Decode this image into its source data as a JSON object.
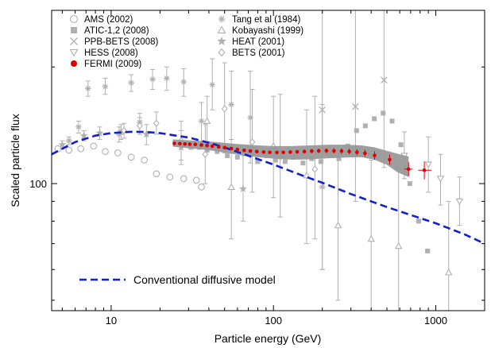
{
  "chart_data": {
    "type": "scatter",
    "title": "",
    "xlabel": "Particle energy (GeV)",
    "ylabel": "Scaled particle flux",
    "x_scale": "log",
    "y_scale": "log",
    "xlim": [
      4.3,
      2000
    ],
    "ylim": [
      47,
      280
    ],
    "x_ticks": [
      10,
      100,
      1000
    ],
    "x_tick_labels": [
      "10",
      "100",
      "1000"
    ],
    "y_ticks": [
      100
    ],
    "y_tick_labels": [
      "100"
    ],
    "grid": false,
    "legend_position": "top-left",
    "colors": {
      "data_gray": "#b0b0b0",
      "fermi": "#e00000",
      "model": "#1020d0",
      "band": "#999999"
    },
    "legend": {
      "col1": [
        {
          "label": "AMS (2002)",
          "marker": "circle"
        },
        {
          "label": "ATIC-1,2 (2008)",
          "marker": "square"
        },
        {
          "label": "PPB-BETS (2008)",
          "marker": "cross"
        },
        {
          "label": "HESS (2008)",
          "marker": "triangle-down"
        },
        {
          "label": "FERMI (2009)",
          "marker": "filled-circle"
        }
      ],
      "col2": [
        {
          "label": "Tang et al (1984)",
          "marker": "asterisk"
        },
        {
          "label": "Kobayashi (1999)",
          "marker": "triangle-up"
        },
        {
          "label": "HEAT (2001)",
          "marker": "star"
        },
        {
          "label": "BETS (2001)",
          "marker": "diamond"
        }
      ]
    },
    "model_label": "Conventional diffusive model",
    "series": [
      {
        "name": "AMS (2002)",
        "marker": "circle",
        "points": [
          [
            4.7,
            123,
            127
          ],
          [
            5.5,
            122,
            126
          ],
          [
            6.5,
            123,
            128
          ],
          [
            7.8,
            125,
            131
          ],
          [
            9.2,
            121,
            128
          ],
          [
            11,
            120,
            128
          ],
          [
            13.3,
            117,
            126
          ],
          [
            16,
            115,
            126
          ],
          [
            19,
            106,
            118
          ],
          [
            23,
            104,
            118
          ],
          [
            28,
            103,
            121
          ],
          [
            33.5,
            102,
            125
          ],
          [
            36,
            98,
            125
          ]
        ]
      },
      {
        "name": "ATIC-1,2 (2008)",
        "marker": "square",
        "points": [
          [
            27,
            127,
            132
          ],
          [
            31,
            124,
            130
          ],
          [
            35,
            124,
            131
          ],
          [
            39,
            122,
            130
          ],
          [
            45,
            121,
            131
          ],
          [
            52,
            118,
            129
          ],
          [
            60,
            117,
            129
          ],
          [
            70,
            120,
            132
          ],
          [
            80,
            114,
            128
          ],
          [
            91,
            118,
            133
          ],
          [
            103,
            115,
            131
          ],
          [
            118,
            114,
            132
          ],
          [
            133,
            117,
            137
          ],
          [
            152,
            113,
            135
          ],
          [
            172,
            116,
            141
          ],
          [
            196,
            114,
            143
          ],
          [
            222,
            120,
            153
          ],
          [
            253,
            116,
            152
          ],
          [
            287,
            125,
            170
          ],
          [
            325,
            137,
            194
          ],
          [
            368,
            141,
            206
          ],
          [
            418,
            147,
            225
          ],
          [
            474,
            152,
            245
          ],
          [
            538,
            145,
            250
          ],
          [
            610,
            126,
            230
          ],
          [
            692,
            100,
            195
          ],
          [
            785,
            80,
            170
          ],
          [
            890,
            67,
            155
          ]
        ]
      },
      {
        "name": "PPB-BETS (2008)",
        "marker": "cross",
        "points": [
          [
            200,
            155,
            60,
            450
          ],
          [
            320,
            158,
            90,
            320
          ],
          [
            480,
            185,
            110,
            320
          ]
        ]
      },
      {
        "name": "HESS (2008)",
        "marker": "triangle-down",
        "points": [
          [
            640,
            118,
            103,
            136
          ],
          [
            900,
            112,
            95,
            132
          ],
          [
            1070,
            103,
            88,
            119
          ],
          [
            1400,
            90,
            78,
            104
          ]
        ]
      },
      {
        "name": "Tang et al (1984)",
        "marker": "asterisk",
        "points": [
          [
            5.5,
            129,
            126,
            132
          ],
          [
            6.3,
            140,
            135,
            145
          ],
          [
            7.2,
            176,
            168,
            184
          ],
          [
            9.2,
            178,
            170,
            187
          ],
          [
            11.2,
            134,
            128,
            140
          ],
          [
            13.3,
            182,
            173,
            191
          ],
          [
            15,
            144,
            136,
            152
          ],
          [
            18,
            186,
            175,
            197
          ],
          [
            22,
            187,
            174,
            200
          ],
          [
            28,
            183,
            168,
            198
          ],
          [
            36,
            145,
            128,
            162
          ],
          [
            42,
            180,
            155,
            210
          ],
          [
            55,
            160,
            130,
            195
          ],
          [
            72,
            148,
            113,
            195
          ],
          [
            200,
            98,
            60,
            160
          ]
        ]
      },
      {
        "name": "Kobayashi (1999)",
        "marker": "triangle-up",
        "points": [
          [
            39,
            145,
            125,
            168
          ],
          [
            55,
            98,
            72,
            130
          ],
          [
            100,
            125,
            92,
            168
          ],
          [
            160,
            105,
            70,
            155
          ],
          [
            250,
            78,
            50,
            120
          ],
          [
            400,
            72,
            45,
            115
          ],
          [
            590,
            69,
            42,
            110
          ],
          [
            1200,
            59,
            38,
            90
          ]
        ]
      },
      {
        "name": "HEAT (2001)",
        "marker": "star",
        "points": [
          [
            5,
            126,
            123,
            129
          ],
          [
            6.8,
            133,
            129,
            137
          ],
          [
            8.5,
            135,
            130,
            140
          ],
          [
            11.5,
            136,
            130,
            142
          ],
          [
            16.5,
            134,
            126,
            142
          ],
          [
            27,
            124,
            112,
            137
          ],
          [
            65,
            97,
            80,
            118
          ]
        ]
      },
      {
        "name": "BETS (2001)",
        "marker": "diamond",
        "points": [
          [
            12,
            137,
            131,
            143
          ],
          [
            15,
            141,
            134,
            148
          ],
          [
            19,
            143,
            134,
            153
          ],
          [
            27,
            129,
            115,
            145
          ],
          [
            38,
            119,
            100,
            142
          ],
          [
            50,
            156,
            120,
            205
          ],
          [
            74,
            128,
            95,
            175
          ],
          [
            110,
            117,
            82,
            170
          ],
          [
            180,
            109,
            72,
            168
          ]
        ]
      },
      {
        "name": "FERMI (2009)",
        "marker": "filled-circle",
        "points": [
          [
            24.5,
            127.0,
            126.0,
            128.0
          ],
          [
            26.5,
            126.8,
            125.8,
            127.8
          ],
          [
            28.5,
            126.6,
            125.6,
            127.6
          ],
          [
            30.5,
            126.4,
            125.4,
            127.4
          ],
          [
            33,
            126.2,
            125.2,
            127.2
          ],
          [
            36,
            125.8,
            124.8,
            126.8
          ],
          [
            39,
            125.4,
            124.4,
            126.4
          ],
          [
            42,
            124.9,
            123.9,
            125.9
          ],
          [
            46,
            124.4,
            123.4,
            125.4
          ],
          [
            50,
            123.8,
            122.8,
            124.8
          ],
          [
            55,
            123.2,
            122.2,
            124.2
          ],
          [
            60,
            122.5,
            121.5,
            123.5
          ],
          [
            66,
            121.9,
            120.9,
            122.9
          ],
          [
            72,
            121.4,
            120.4,
            122.4
          ],
          [
            79,
            121.0,
            120.0,
            122.0
          ],
          [
            87,
            120.6,
            119.6,
            121.6
          ],
          [
            95,
            120.4,
            119.4,
            121.4
          ],
          [
            105,
            120.3,
            119.3,
            121.3
          ],
          [
            115,
            120.4,
            119.3,
            121.5
          ],
          [
            127,
            120.6,
            119.4,
            121.8
          ],
          [
            140,
            120.8,
            119.5,
            122.1
          ],
          [
            155,
            121.0,
            119.6,
            122.4
          ],
          [
            172,
            121.3,
            119.8,
            122.8
          ],
          [
            190,
            121.5,
            119.9,
            123.1
          ],
          [
            212,
            121.6,
            119.9,
            123.3
          ],
          [
            236,
            121.5,
            119.7,
            123.3
          ],
          [
            263,
            121.3,
            119.4,
            123.2
          ],
          [
            293,
            121.0,
            118.9,
            123.1
          ],
          [
            327,
            120.5,
            118.3,
            122.7
          ],
          [
            366,
            119.8,
            117.3,
            122.3
          ],
          [
            420,
            118.2,
            115.2,
            121.2
          ],
          [
            520,
            115.3,
            111.8,
            118.8
          ],
          [
            680,
            109.0,
            104.5,
            113.5
          ],
          [
            850,
            108.3,
            102.5,
            114.1
          ]
        ]
      }
    ],
    "fermi_xerr": [
      [
        680,
        640,
        720
      ],
      [
        850,
        780,
        940
      ]
    ],
    "fermi_band": {
      "x": [
        24,
        40,
        60,
        80,
        100,
        130,
        170,
        220,
        280,
        350,
        420,
        500,
        580,
        680
      ],
      "lower": [
        124.5,
        122.0,
        118.8,
        117.0,
        116.0,
        115.3,
        115.5,
        116.3,
        116.8,
        117.0,
        115.2,
        111.8,
        107.0,
        104.0
      ],
      "upper": [
        130.0,
        128.5,
        126.5,
        125.5,
        125.0,
        125.0,
        125.5,
        126.0,
        126.0,
        125.5,
        124.0,
        121.5,
        119.5,
        117.5
      ]
    },
    "model_curve": {
      "name": "Conventional diffusive model",
      "x": [
        4.3,
        6,
        8,
        10,
        13,
        16,
        20,
        25,
        30,
        40,
        50,
        70,
        100,
        150,
        200,
        300,
        500,
        700,
        1000,
        1500,
        2000
      ],
      "y": [
        119,
        128,
        133,
        135,
        136,
        136,
        135,
        133,
        131.5,
        127.5,
        124,
        118,
        112,
        105,
        100.5,
        94,
        87,
        83,
        79,
        74,
        70
      ]
    }
  }
}
